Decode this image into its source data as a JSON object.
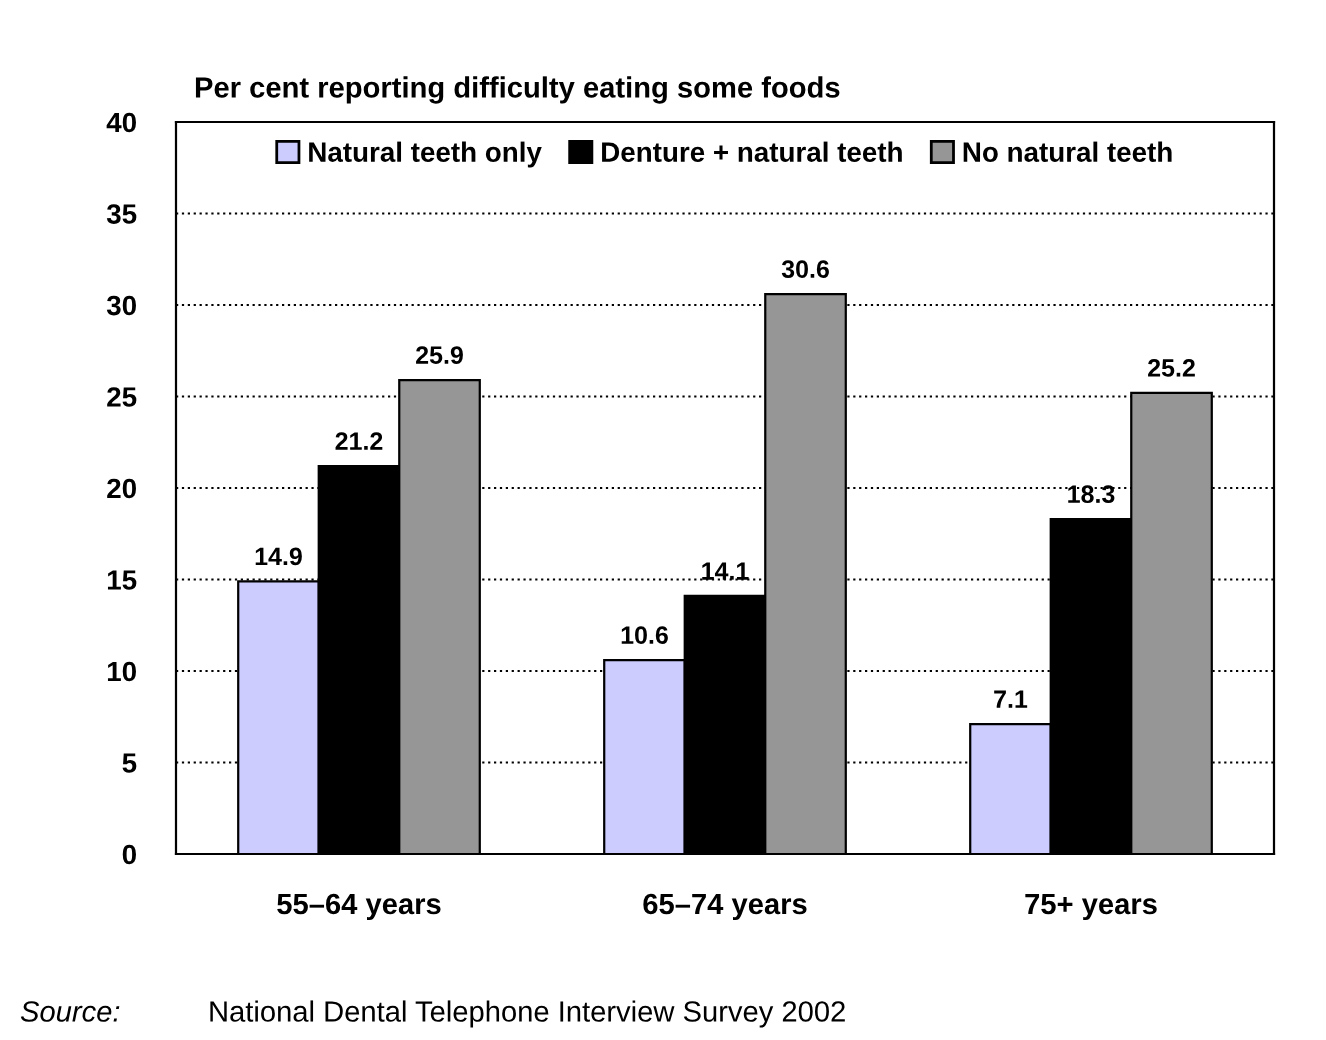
{
  "chart_data": {
    "type": "bar",
    "title": "Per cent reporting difficulty eating some foods",
    "categories": [
      "55–64 years",
      "65–74 years",
      "75+ years"
    ],
    "series": [
      {
        "name": "Natural teeth only",
        "color": "#ccccff",
        "values": [
          14.9,
          10.6,
          7.1
        ]
      },
      {
        "name": "Denture + natural teeth",
        "color": "#000000",
        "values": [
          21.2,
          14.1,
          18.3
        ]
      },
      {
        "name": "No natural teeth",
        "color": "#969696",
        "values": [
          25.9,
          30.6,
          25.2
        ]
      }
    ],
    "ylim": [
      0,
      40
    ],
    "yticks": [
      0,
      5,
      10,
      15,
      20,
      25,
      30,
      35,
      40
    ],
    "grid": "y",
    "legend": "top",
    "data_labels": true,
    "annotations": [
      "Source:",
      "National Dental Telephone Interview Survey 2002"
    ]
  }
}
